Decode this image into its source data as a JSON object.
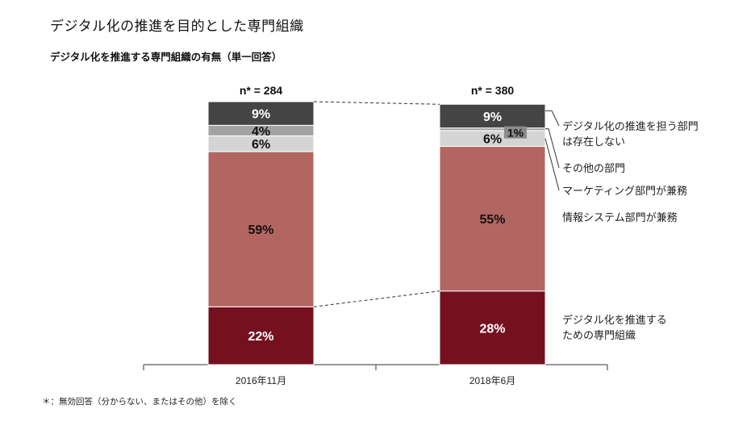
{
  "title": "デジタル化の推進を目的とした専門組織",
  "subtitle": "デジタル化を推進する専門組織の有無（単一回答）",
  "footnote": "＊：無効回答（分からない、またはその他）を除く",
  "chart_data": {
    "type": "bar",
    "stacked": true,
    "normalized_to_percent": true,
    "categories": [
      "2016年11月",
      "2018年6月"
    ],
    "n_labels": [
      "n* = 284",
      "n* = 380"
    ],
    "series": [
      {
        "name": "デジタル化を推進するための専門組織",
        "values": [
          22,
          28
        ],
        "labels": [
          "22%",
          "28%"
        ],
        "color": "#75101f",
        "label_color": "#ffffff",
        "legend_lines": [
          "デジタル化を推進する",
          "ための専門組織"
        ]
      },
      {
        "name": "情報システム部門が兼務",
        "values": [
          59,
          55
        ],
        "labels": [
          "59%",
          "55%"
        ],
        "color": "#b36661",
        "label_color": "#111111",
        "legend_lines": [
          "情報システム部門が兼務"
        ]
      },
      {
        "name": "マーケティング部門が兼務",
        "values": [
          6,
          6
        ],
        "labels": [
          "6%",
          "6%"
        ],
        "color": "#d4d4d4",
        "label_color": "#111111",
        "legend_lines": [
          "マーケティング部門が兼務"
        ]
      },
      {
        "name": "その他の部門",
        "values": [
          4,
          1
        ],
        "labels": [
          "4%",
          "1%"
        ],
        "color": "#a3a3a3",
        "label_color": "#111111",
        "legend_lines": [
          "その他の部門"
        ]
      },
      {
        "name": "デジタル化の推進を担う部門は存在しない",
        "values": [
          9,
          9
        ],
        "labels": [
          "9%",
          "9%"
        ],
        "color": "#444444",
        "label_color": "#ffffff",
        "legend_lines": [
          "デジタル化の推進を担う部門",
          "は存在しない"
        ]
      }
    ],
    "grid": false,
    "legend": "right"
  }
}
